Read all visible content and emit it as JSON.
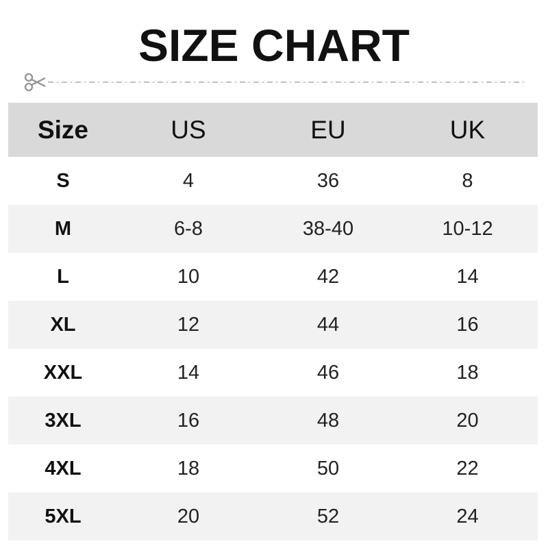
{
  "title": "SIZE CHART",
  "colors": {
    "header_bg": "#d9d9d9",
    "alt_row_bg": "#f2f2f2",
    "cut_line": "#aaaaaa"
  },
  "icons": {
    "cut": "scissors-icon"
  },
  "chart_data": {
    "type": "table",
    "title": "SIZE CHART",
    "columns": [
      "Size",
      "US",
      "EU",
      "UK"
    ],
    "rows": [
      [
        "S",
        "4",
        "36",
        "8"
      ],
      [
        "M",
        "6-8",
        "38-40",
        "10-12"
      ],
      [
        "L",
        "10",
        "42",
        "14"
      ],
      [
        "XL",
        "12",
        "44",
        "16"
      ],
      [
        "XXL",
        "14",
        "46",
        "18"
      ],
      [
        "3XL",
        "16",
        "48",
        "20"
      ],
      [
        "4XL",
        "18",
        "50",
        "22"
      ],
      [
        "5XL",
        "20",
        "52",
        "24"
      ]
    ]
  }
}
